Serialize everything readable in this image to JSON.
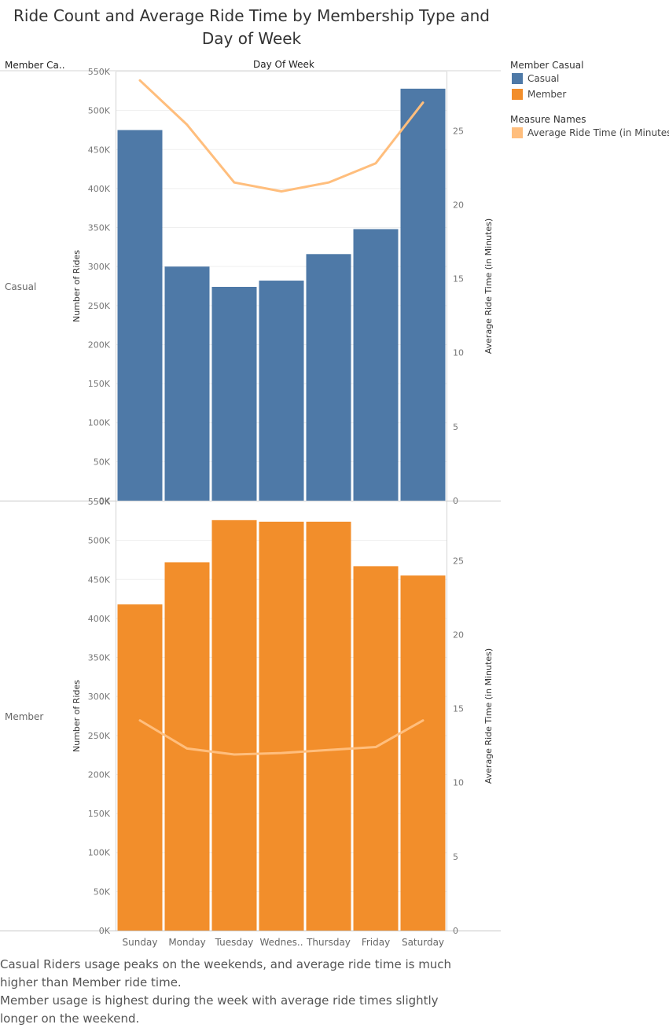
{
  "title": "Ride Count and Average Ride Time by Membership Type and Day of Week",
  "header": {
    "row_field": "Member Ca..",
    "column_field": "Day Of Week"
  },
  "legend": {
    "color_title": "Member Casual",
    "color_items": [
      {
        "label": "Casual",
        "color": "#4e79a7"
      },
      {
        "label": "Member",
        "color": "#f28e2b"
      }
    ],
    "measure_title": "Measure Names",
    "measure_items": [
      {
        "label": "Average Ride Time (in Minutes)",
        "color": "#ffbe7d"
      }
    ]
  },
  "chart_data": {
    "type": "bar",
    "categories": [
      "Sunday",
      "Monday",
      "Tuesday",
      "Wednes..",
      "Thursday",
      "Friday",
      "Saturday"
    ],
    "ylabel": "Number of Rides",
    "y2label": "Average Ride Time (in Minutes)",
    "ylim": [
      0,
      550000
    ],
    "y2lim": [
      0,
      29
    ],
    "yticks": [
      "0K",
      "50K",
      "100K",
      "150K",
      "200K",
      "250K",
      "300K",
      "350K",
      "400K",
      "450K",
      "500K",
      "550K"
    ],
    "y2ticks": [
      "0",
      "5",
      "10",
      "15",
      "20",
      "25"
    ],
    "rows": [
      {
        "name": "Casual",
        "color": "#4e79a7",
        "rides": [
          475000,
          300000,
          274000,
          282000,
          316000,
          348000,
          528000
        ],
        "avg_ride_time": [
          28.4,
          25.4,
          21.5,
          20.9,
          21.5,
          22.8,
          26.9
        ]
      },
      {
        "name": "Member",
        "color": "#f28e2b",
        "rides": [
          418000,
          472000,
          526000,
          524000,
          524000,
          467000,
          455000
        ],
        "avg_ride_time": [
          14.2,
          12.3,
          11.9,
          12.0,
          12.2,
          12.4,
          14.2
        ]
      }
    ],
    "line_color": "#ffbe7d",
    "grid": true
  },
  "caption": [
    "Casual Riders usage peaks on the weekends, and average ride time is much higher than Member ride time.",
    "Member usage is highest during the week with average ride times slightly longer on the weekend."
  ]
}
